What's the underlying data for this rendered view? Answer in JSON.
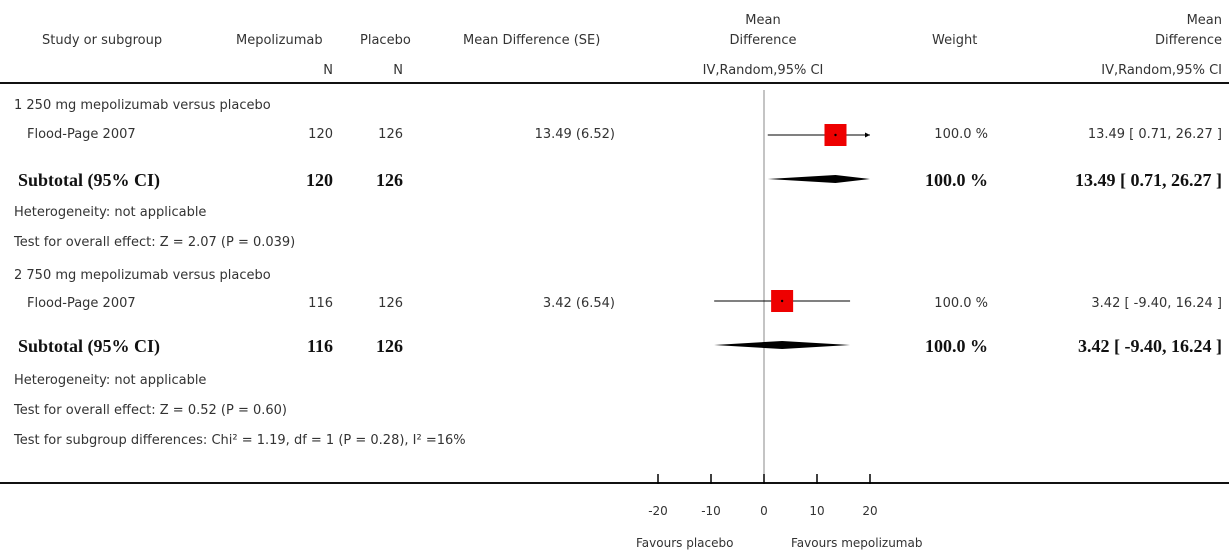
{
  "header": {
    "study": "Study or subgroup",
    "mepo": "Mepolizumab",
    "placebo": "Placebo",
    "md_se": "Mean Difference (SE)",
    "plot_title_1": "Mean",
    "plot_title_2": "Difference",
    "weight": "Weight",
    "md_title_1": "Mean",
    "md_title_2": "Difference",
    "n1": "N",
    "n2": "N",
    "plot_method": "IV,Random,95% CI",
    "md_method": "IV,Random,95% CI"
  },
  "groups": [
    {
      "label": "1 250 mg mepolizumab versus placebo",
      "study": {
        "name": "Flood-Page 2007",
        "n1": "120",
        "n2": "126",
        "md_se": "13.49 (6.52)",
        "weight": "100.0 %",
        "ci": "13.49 [ 0.71, 26.27 ]"
      },
      "subtotal": {
        "label": "Subtotal (95% CI)",
        "n1": "120",
        "n2": "126",
        "weight": "100.0 %",
        "ci": "13.49 [ 0.71, 26.27 ]"
      },
      "heterogeneity": "Heterogeneity: not applicable",
      "overall": "Test for overall effect: Z = 2.07 (P = 0.039)"
    },
    {
      "label": "2 750 mg mepolizumab versus placebo",
      "study": {
        "name": "Flood-Page 2007",
        "n1": "116",
        "n2": "126",
        "md_se": "3.42 (6.54)",
        "weight": "100.0 %",
        "ci": "3.42 [ -9.40, 16.24 ]"
      },
      "subtotal": {
        "label": "Subtotal (95% CI)",
        "n1": "116",
        "n2": "126",
        "weight": "100.0 %",
        "ci": "3.42 [ -9.40, 16.24 ]"
      },
      "heterogeneity": "Heterogeneity: not applicable",
      "overall": "Test for overall effect: Z = 0.52 (P = 0.60)"
    }
  ],
  "subgroup_test": "Test for subgroup differences: Chi² = 1.19, df = 1 (P = 0.28), I² =16%",
  "footer": {
    "favours_left": "Favours placebo",
    "favours_right": "Favours mepolizumab"
  },
  "colors": {
    "marker": "#ee0000",
    "diamond": "#000000",
    "axis": "#000000",
    "line_of_no_effect": "#888888"
  },
  "chart_data": {
    "type": "forest",
    "xlim": [
      -20,
      20
    ],
    "ticks": [
      -20,
      -10,
      0,
      10,
      20
    ],
    "tick_labels": [
      "-20",
      "-10",
      "0",
      "10",
      "20"
    ],
    "x_arrow_clipped": true,
    "studies": [
      {
        "name": "Flood-Page 2007",
        "group": "1 250 mg mepolizumab versus placebo",
        "md": 13.49,
        "lower": 0.71,
        "upper": 26.27,
        "weight": 100.0
      },
      {
        "name": "Flood-Page 2007",
        "group": "2 750 mg mepolizumab versus placebo",
        "md": 3.42,
        "lower": -9.4,
        "upper": 16.24,
        "weight": 100.0
      }
    ],
    "subtotals": [
      {
        "group": "1 250 mg mepolizumab versus placebo",
        "md": 13.49,
        "lower": 0.71,
        "upper": 26.27
      },
      {
        "group": "2 750 mg mepolizumab versus placebo",
        "md": 3.42,
        "lower": -9.4,
        "upper": 16.24
      }
    ]
  }
}
